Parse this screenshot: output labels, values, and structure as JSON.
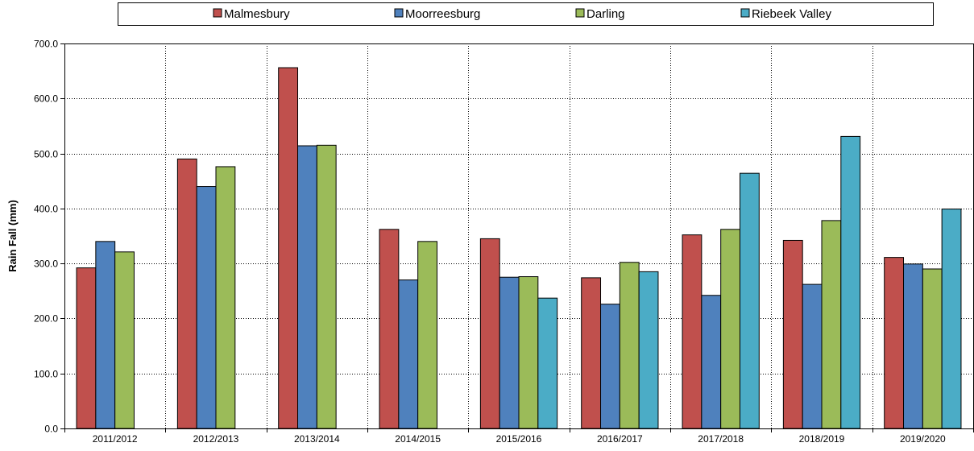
{
  "chart_data": {
    "type": "bar",
    "title": "",
    "xlabel": "",
    "ylabel": "Rain Fall (mm)",
    "ylim": [
      0,
      700
    ],
    "ytick_step": 100,
    "ytick_format": "0.0",
    "grid": "dotted, both axes",
    "legend_position": "top",
    "categories": [
      "2011/2012",
      "2012/2013",
      "2013/2014",
      "2014/2015",
      "2015/2016",
      "2016/2017",
      "2017/2018",
      "2018/2019",
      "2019/2020"
    ],
    "series": [
      {
        "name": "Malmesbury",
        "color": "#c0504d",
        "values": [
          292,
          490,
          656,
          362,
          345,
          274,
          352,
          342,
          311
        ]
      },
      {
        "name": "Moorreesburg",
        "color": "#4f81bd",
        "values": [
          340,
          440,
          514,
          270,
          275,
          226,
          242,
          262,
          299
        ]
      },
      {
        "name": "Darling",
        "color": "#9bbb59",
        "values": [
          321,
          476,
          515,
          340,
          276,
          302,
          362,
          378,
          290
        ]
      },
      {
        "name": "Riebeek Valley",
        "color": "#4bacc6",
        "values": [
          null,
          null,
          null,
          null,
          237,
          285,
          464,
          531,
          399
        ]
      }
    ]
  }
}
